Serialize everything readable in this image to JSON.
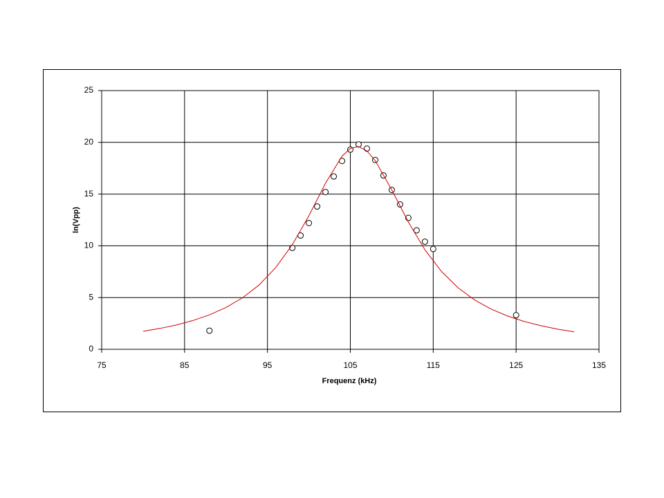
{
  "chart_data": {
    "type": "scatter",
    "xlabel": "Frequenz (kHz)",
    "ylabel": "ln(Vpp)",
    "xlim": [
      75,
      135
    ],
    "xticks": [
      75,
      85,
      95,
      105,
      115,
      125,
      135
    ],
    "ylim": [
      0,
      25
    ],
    "yticks": [
      0,
      5,
      10,
      15,
      20,
      25
    ],
    "grid": true,
    "series": [
      {
        "style": "markers",
        "color": "#000000",
        "x": [
          88,
          98,
          99,
          100,
          101,
          102,
          103,
          104,
          105,
          106,
          107,
          108,
          109,
          110,
          111,
          112,
          113,
          114,
          115,
          125
        ],
        "values": [
          1.8,
          9.8,
          11.0,
          12.2,
          13.8,
          15.2,
          16.7,
          18.2,
          19.3,
          19.8,
          19.4,
          18.3,
          16.8,
          15.4,
          14.0,
          12.7,
          11.5,
          10.4,
          9.7,
          3.3
        ]
      },
      {
        "style": "line",
        "color": "#cc0000",
        "x": [
          80,
          82,
          84,
          86,
          88,
          90,
          92,
          94,
          96,
          98,
          100,
          102,
          104,
          105,
          106,
          107,
          108,
          110,
          112,
          114,
          116,
          118,
          120,
          122,
          124,
          126,
          128,
          130,
          132
        ],
        "values": [
          1.74,
          2.01,
          2.35,
          2.78,
          3.33,
          4.04,
          4.98,
          6.22,
          7.9,
          10.11,
          12.9,
          16.04,
          18.67,
          19.41,
          19.59,
          19.17,
          18.24,
          15.41,
          12.3,
          9.62,
          7.52,
          5.94,
          4.77,
          3.88,
          3.21,
          2.68,
          2.28,
          1.95,
          1.69
        ]
      }
    ]
  }
}
